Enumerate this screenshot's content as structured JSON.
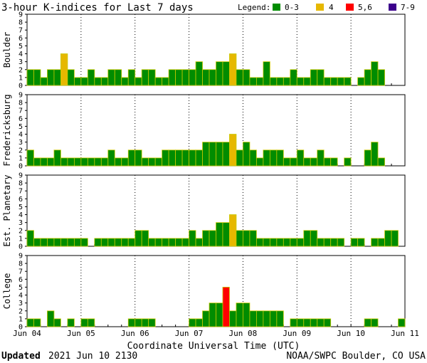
{
  "title": "3-hour K-indices for Last 7 days",
  "legend": {
    "label": "Legend:",
    "items": [
      {
        "label": "0-3",
        "color": "#008c00"
      },
      {
        "label": "4",
        "color": "#e6b800"
      },
      {
        "label": "5,6",
        "color": "#ff0000"
      },
      {
        "label": "7-9",
        "color": "#3c008c"
      }
    ]
  },
  "xlabel": "Coordinate Universal Time (UTC)",
  "footer": {
    "updated_label": "Updated",
    "updated_value": "2021 Jun 10 2130",
    "credit": "NOAA/SWPC Boulder, CO USA"
  },
  "chart_data": {
    "type": "bar",
    "ylim": [
      0,
      9
    ],
    "yticks": [
      "0",
      "1",
      "2",
      "3",
      "4",
      "5",
      "6",
      "7",
      "8",
      "9"
    ],
    "x_tick_labels": [
      "Jun 04",
      "Jun 05",
      "Jun 06",
      "Jun 07",
      "Jun 08",
      "Jun 09",
      "Jun 10",
      "Jun 11"
    ],
    "bars_per_day": 8,
    "legend_placement": "top-right",
    "series": [
      {
        "name": "Boulder",
        "values": [
          2,
          2,
          1,
          2,
          2,
          4,
          2,
          1,
          1,
          2,
          1,
          1,
          2,
          2,
          1,
          2,
          1,
          2,
          2,
          1,
          1,
          2,
          2,
          2,
          2,
          3,
          2,
          2,
          3,
          3,
          4,
          2,
          2,
          1,
          1,
          3,
          1,
          1,
          1,
          2,
          1,
          1,
          2,
          2,
          1,
          1,
          1,
          1,
          0,
          1,
          2,
          3,
          2,
          0
        ]
      },
      {
        "name": "Fredericksburg",
        "values": [
          2,
          1,
          1,
          1,
          2,
          1,
          1,
          1,
          1,
          1,
          1,
          1,
          2,
          1,
          1,
          2,
          2,
          1,
          1,
          1,
          2,
          2,
          2,
          2,
          2,
          2,
          3,
          3,
          3,
          3,
          4,
          2,
          3,
          2,
          1,
          2,
          2,
          2,
          1,
          1,
          2,
          1,
          1,
          2,
          1,
          1,
          0,
          1,
          0,
          0,
          2,
          3,
          1,
          0
        ]
      },
      {
        "name": "Est. Planetary",
        "values": [
          2,
          1,
          1,
          1,
          1,
          1,
          1,
          1,
          1,
          0,
          1,
          1,
          1,
          1,
          1,
          1,
          2,
          2,
          1,
          1,
          1,
          1,
          1,
          1,
          2,
          1,
          2,
          2,
          3,
          3,
          4,
          2,
          2,
          2,
          1,
          1,
          1,
          1,
          1,
          1,
          1,
          2,
          2,
          1,
          1,
          1,
          1,
          0,
          1,
          1,
          0,
          1,
          1,
          2,
          2
        ]
      },
      {
        "name": "College",
        "values": [
          1,
          1,
          0,
          2,
          1,
          0,
          1,
          0,
          1,
          1,
          0,
          0,
          0,
          0,
          0,
          1,
          1,
          1,
          1,
          0,
          0,
          0,
          0,
          0,
          1,
          1,
          2,
          3,
          3,
          5,
          2,
          3,
          3,
          2,
          2,
          2,
          2,
          2,
          0,
          1,
          1,
          1,
          1,
          1,
          1,
          0,
          0,
          0,
          0,
          0,
          1,
          1,
          0,
          0,
          0,
          1,
          0
        ]
      }
    ]
  }
}
